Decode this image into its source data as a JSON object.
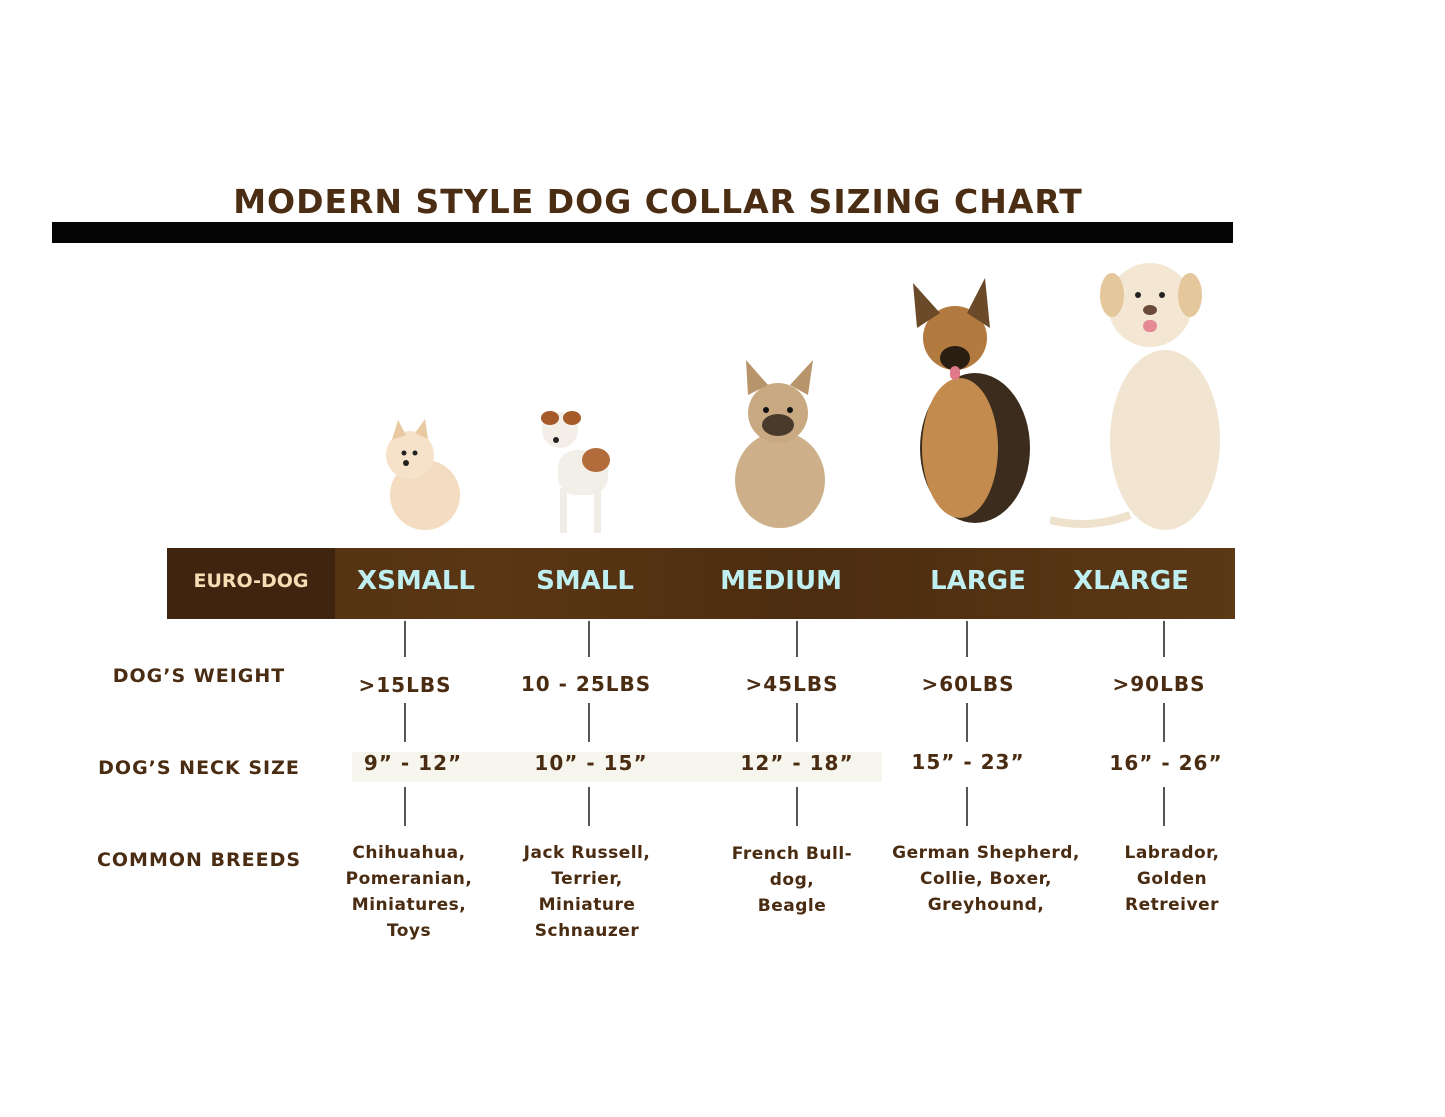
{
  "title": "MODERN STYLE DOG COLLAR SIZING CHART",
  "brand_label": "EURO-DOG",
  "row_labels": {
    "weight": "DOG’S WEIGHT",
    "neck": "DOG’S NECK SIZE",
    "breeds": "COMMON BREEDS"
  },
  "colors": {
    "title": "#4a2d12",
    "band": "#55331a",
    "size_label": "#bfeff0",
    "brand_label": "#f6deb4"
  },
  "sizes": [
    {
      "label": "XSMALL",
      "weight": ">15LBS",
      "neck": "9” - 12”",
      "breeds": [
        "Chihuahua,",
        "Pomeranian,",
        "Miniatures,",
        "Toys"
      ],
      "dog": "pomeranian"
    },
    {
      "label": "SMALL",
      "weight": "10 - 25LBS",
      "neck": "10” - 15”",
      "breeds": [
        "Jack Russell,",
        "Terrier,",
        "Miniature",
        "Schnauzer"
      ],
      "dog": "jack-russell"
    },
    {
      "label": "MEDIUM",
      "weight": ">45LBS",
      "neck": "12” - 18”",
      "breeds": [
        "French Bull-",
        "dog,",
        "Beagle"
      ],
      "dog": "french-bulldog"
    },
    {
      "label": "LARGE",
      "weight": ">60LBS",
      "neck": "15” - 23”",
      "breeds": [
        "German Shepherd,",
        "Collie, Boxer,",
        "Greyhound,"
      ],
      "dog": "german-shepherd"
    },
    {
      "label": "XLARGE",
      "weight": ">90LBS",
      "neck": "16” - 26”",
      "breeds": [
        "Labrador,",
        "Golden",
        "Retreiver"
      ],
      "dog": "labrador"
    }
  ]
}
